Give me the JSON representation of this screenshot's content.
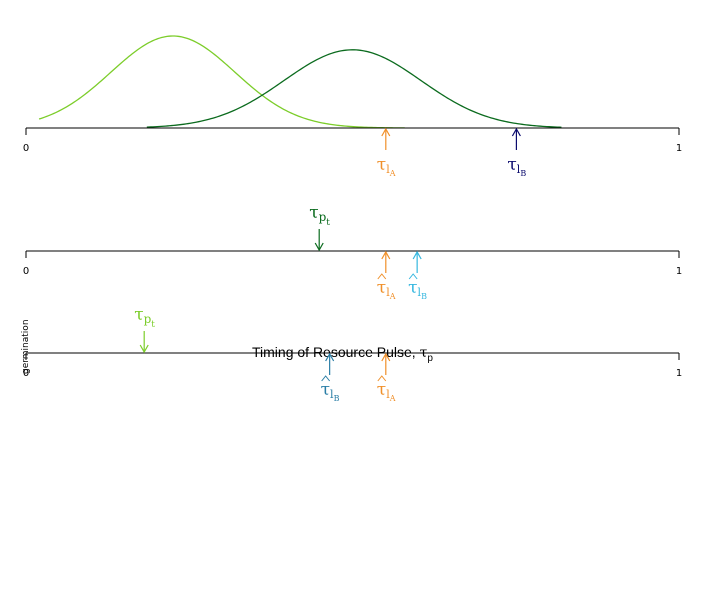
{
  "colors": {
    "light_green": "#7ccd2a",
    "dark_green": "#0b6b1e",
    "orange": "#f0902a",
    "navy": "#0b0b6e",
    "cyan": "#35b7df",
    "steel_blue": "#2a7ea6",
    "axis": "#000000"
  },
  "panel1": {
    "axis_start": "0",
    "axis_end": "1",
    "curves": [
      {
        "color_key": "light_green",
        "mean": 0.225,
        "sd": 0.095,
        "from": 0.02,
        "to": 0.58,
        "peak": 1.0
      },
      {
        "color_key": "dark_green",
        "mean": 0.5,
        "sd": 0.105,
        "from": 0.185,
        "to": 0.82,
        "peak": 0.85
      }
    ],
    "arrows": [
      {
        "label": "τ",
        "sub": "l",
        "subsub": "A",
        "value": 0.551,
        "color_key": "orange",
        "hat": false
      },
      {
        "label": "τ",
        "sub": "l",
        "subsub": "B",
        "value": 0.751,
        "color_key": "navy",
        "hat": false
      }
    ]
  },
  "panel2": {
    "axis_start": "0",
    "axis_end": "1",
    "pulse": {
      "label": "τ",
      "sub": "p",
      "subsub": "t",
      "value": 0.449,
      "color_key": "dark_green"
    },
    "arrows": [
      {
        "label": "τ",
        "sub": "l",
        "subsub": "A",
        "value": 0.551,
        "color_key": "orange",
        "hat": true
      },
      {
        "label": "τ",
        "sub": "l",
        "subsub": "B",
        "value": 0.599,
        "color_key": "cyan",
        "hat": true
      }
    ]
  },
  "panel3": {
    "axis_start": "0",
    "axis_end": "1",
    "xlabel": "Timing of Resource Pulse, ",
    "xlabel_symbol": "τ",
    "xlabel_sub": "p",
    "ylabel": "germination",
    "pulse": {
      "label": "τ",
      "sub": "p",
      "subsub": "t",
      "value": 0.181,
      "color_key": "light_green"
    },
    "arrows": [
      {
        "label": "τ",
        "sub": "l",
        "subsub": "B",
        "value": 0.465,
        "color_key": "steel_blue",
        "hat": true
      },
      {
        "label": "τ",
        "sub": "l",
        "subsub": "A",
        "value": 0.551,
        "color_key": "orange",
        "hat": true
      }
    ]
  }
}
